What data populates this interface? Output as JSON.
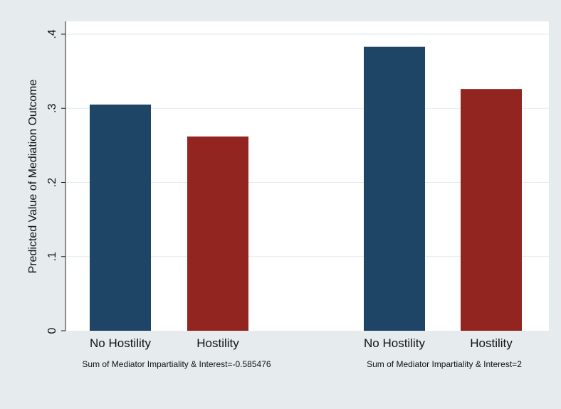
{
  "chart_data": {
    "type": "bar",
    "ylabel": "Predicted Value of Mediation Outcome",
    "ylim": [
      0,
      0.4
    ],
    "yticks": [
      0,
      0.1,
      0.2,
      0.3,
      0.4
    ],
    "ytick_labels": [
      "0",
      ".1",
      ".2",
      ".3",
      ".4"
    ],
    "grid": true,
    "groups": [
      {
        "label": "Sum of Mediator Impartiality & Interest=-0.585476",
        "bars": [
          {
            "category": "No Hostility",
            "value": 0.305,
            "color": "#1e4466"
          },
          {
            "category": "Hostility",
            "value": 0.262,
            "color": "#922520"
          }
        ]
      },
      {
        "label": "Sum of Mediator Impartiality & Interest=2",
        "bars": [
          {
            "category": "No Hostility",
            "value": 0.383,
            "color": "#1e4466"
          },
          {
            "category": "Hostility",
            "value": 0.326,
            "color": "#922520"
          }
        ]
      }
    ]
  }
}
